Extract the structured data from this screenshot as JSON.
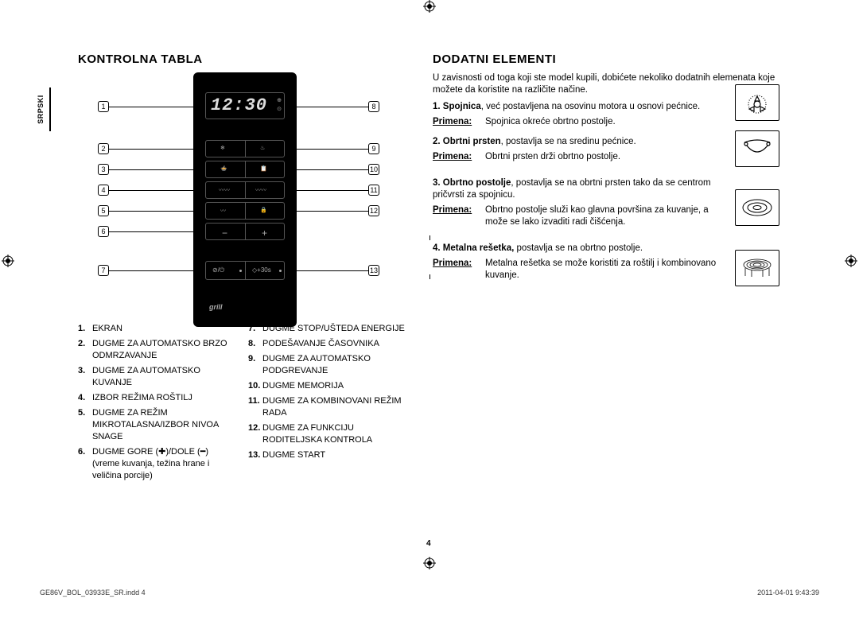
{
  "tab_label": "SRPSKI",
  "left": {
    "title": "KONTROLNA TABLA",
    "display_time": "12:30",
    "grill_label": "grill",
    "callouts": [
      "1",
      "2",
      "3",
      "4",
      "5",
      "6",
      "7",
      "8",
      "9",
      "10",
      "11",
      "12",
      "13"
    ],
    "legendA": [
      {
        "n": "1.",
        "t": "EKRAN"
      },
      {
        "n": "2.",
        "t": "DUGME ZA AUTOMATSKO BRZO ODMRZAVANJE"
      },
      {
        "n": "3.",
        "t": "DUGME ZA AUTOMATSKO KUVANJE"
      },
      {
        "n": "4.",
        "t": "IZBOR REŽIMA ROŠTILJ"
      },
      {
        "n": "5.",
        "t": "DUGME ZA REŽIM MIKROTALASNA/IZBOR NIVOA SNAGE"
      },
      {
        "n": "6.",
        "t": "DUGME GORE (✚)/DOLE (━) (vreme kuvanja, težina hrane i veličina porcije)"
      }
    ],
    "legendB": [
      {
        "n": "7.",
        "t": "DUGME STOP/UŠTEDA ENERGIJE"
      },
      {
        "n": "8.",
        "t": "PODEŠAVANJE ČASOVNIKA"
      },
      {
        "n": "9.",
        "t": "DUGME ZA AUTOMATSKO PODGREVANJE"
      },
      {
        "n": "10.",
        "t": "DUGME MEMORIJA"
      },
      {
        "n": "11.",
        "t": "DUGME ZA KOMBINOVANI REŽIM RADA"
      },
      {
        "n": "12.",
        "t": "DUGME ZA FUNKCIJU RODITELJSKA KONTROLA"
      },
      {
        "n": "13.",
        "t": "DUGME START"
      }
    ]
  },
  "right": {
    "title": "DODATNI ELEMENTI",
    "intro": "U zavisnosti od toga koji ste model kupili, dobićete nekoliko dodatnih elemenata koje možete da koristite na različite načine.",
    "primena_label": "Primena:",
    "items": [
      {
        "n": "1.",
        "name": "Spojnica",
        "rest": ", već postavljena na osovinu motora u osnovi pećnice.",
        "primena": "Spojnica okreće obrtno postolje."
      },
      {
        "n": "2.",
        "name": "Obrtni prsten",
        "rest": ", postavlja se na sredinu pećnice.",
        "primena": "Obrtni prsten drži obrtno postolje."
      },
      {
        "n": "3.",
        "name": "Obrtno postolje",
        "rest": ", postavlja se na obrtni prsten tako da se centrom pričvrsti za spojnicu.",
        "primena": "Obrtno postolje služi kao glavna površina za kuvanje, a može se lako izvaditi radi čišćenja."
      },
      {
        "n": "4.",
        "name": "Metalna rešetka,",
        "rest": " postavlja se na obrtno postolje.",
        "primena": "Metalna rešetka se može koristiti za roštilj i kombinovano kuvanje."
      }
    ]
  },
  "footer": {
    "pagenum": "4",
    "left": "GE86V_BOL_03933E_SR.indd   4",
    "right": "2011-04-01     9:43:39"
  }
}
